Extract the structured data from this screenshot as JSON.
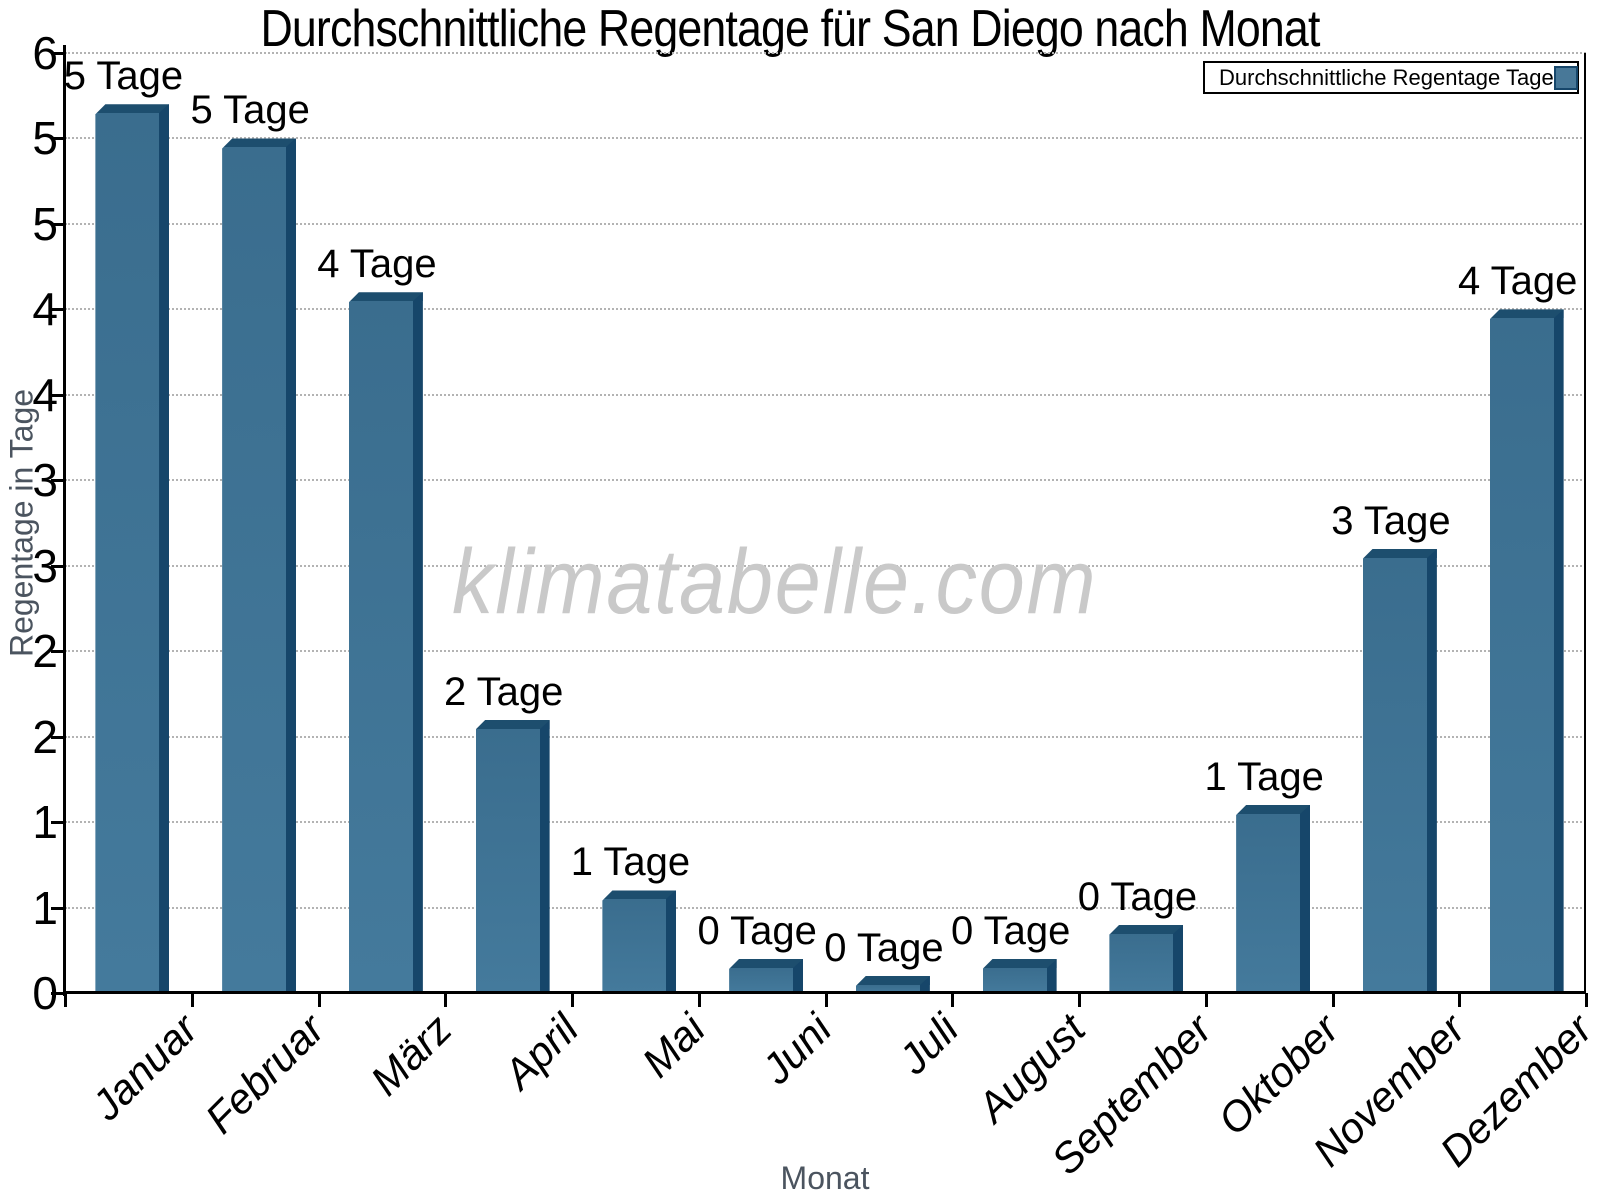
{
  "title": "Durchschnittliche Regentage für San Diego nach Monat",
  "legend": {
    "label": "Durchschnittliche Regentage Tage"
  },
  "watermark": "klimatabelle.com",
  "chart_data": {
    "type": "bar",
    "title": "Durchschnittliche Regentage für San Diego nach Monat",
    "xlabel": "Monat",
    "ylabel": "Regentage in Tage",
    "categories": [
      "Januar",
      "Februar",
      "März",
      "April",
      "Mai",
      "Juni",
      "Juli",
      "August",
      "September",
      "Oktober",
      "November",
      "Dezember"
    ],
    "series": [
      {
        "name": "Durchschnittliche Regentage Tage",
        "values": [
          5.2,
          5.0,
          4.1,
          1.6,
          0.6,
          0.2,
          0.1,
          0.2,
          0.4,
          1.1,
          2.6,
          4.0
        ]
      }
    ],
    "bar_value_labels": [
      "5 Tage",
      "5 Tage",
      "4 Tage",
      "2 Tage",
      "1 Tage",
      "0 Tage",
      "0 Tage",
      "0 Tage",
      "0 Tage",
      "1 Tage",
      "3 Tage",
      "4 Tage"
    ],
    "ylim": [
      0,
      5.5
    ],
    "y_tick_step": 0.5,
    "y_ticks": [
      {
        "value": 0.0,
        "label": "0"
      },
      {
        "value": 0.5,
        "label": "1"
      },
      {
        "value": 1.0,
        "label": "1"
      },
      {
        "value": 1.5,
        "label": "2"
      },
      {
        "value": 2.0,
        "label": "2"
      },
      {
        "value": 2.5,
        "label": "3"
      },
      {
        "value": 3.0,
        "label": "3"
      },
      {
        "value": 3.5,
        "label": "4"
      },
      {
        "value": 4.0,
        "label": "4"
      },
      {
        "value": 4.5,
        "label": "5"
      },
      {
        "value": 5.0,
        "label": "5"
      },
      {
        "value": 5.5,
        "label": "6"
      }
    ],
    "grid": "horizontal-dotted",
    "legend_position": "top-right",
    "colors": {
      "bar_face": "#3d708f",
      "bar_face_bottom": "#447a9c",
      "bar_top": "#1d4e6e",
      "bar_side": "#16466a",
      "grid": "#b3b3b3",
      "axis": "#000000",
      "muted_label": "#4b545f",
      "watermark": "#c9c9c9"
    }
  }
}
